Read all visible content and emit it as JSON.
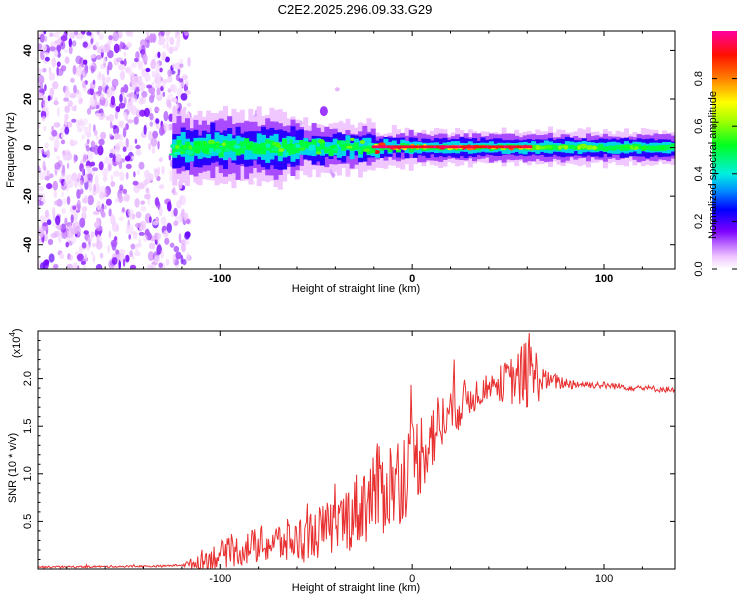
{
  "chart_data": [
    {
      "type": "heatmap",
      "title": "C2E2.2025.296.09.33.G29",
      "xlabel": "Height of straight line (km)",
      "ylabel": "Frequency (Hz)",
      "xlim": [
        -195,
        137
      ],
      "ylim": [
        -50,
        48
      ],
      "x_ticks": [
        -100,
        0,
        100
      ],
      "x_tick_labels": [
        "-100",
        "0",
        "100"
      ],
      "y_ticks": [
        -40,
        -20,
        0,
        20,
        40
      ],
      "y_tick_labels": [
        "-40",
        "-20",
        "0",
        "20",
        "40"
      ],
      "colorbar": {
        "label": "Normalized spectral amplitude",
        "range": [
          0,
          1
        ],
        "ticks": [
          0.0,
          0.2,
          0.4,
          0.6,
          0.8
        ],
        "tick_labels": [
          "0.0",
          "0.2",
          "0.4",
          "0.6",
          "0.8"
        ],
        "colors": [
          "#ffffff",
          "#c8a8ff",
          "#7a00ff",
          "#0000ff",
          "#00d8ff",
          "#00ff00",
          "#ffff00",
          "#ff8000",
          "#ff0000",
          "#ff00a0"
        ]
      },
      "features": {
        "noise_region_x": [
          -195,
          -120
        ],
        "signal_start_x": -125,
        "signal_center_freq": 0,
        "peak_band_x": [
          -20,
          62
        ],
        "outlier_blob": {
          "x": -46,
          "y": 15
        }
      }
    },
    {
      "type": "line",
      "xlabel": "Height of straight line (km)",
      "ylabel": "SNR (10 * v/v)",
      "y_multiplier_label": "(x10",
      "y_multiplier_exp": "4",
      "y_multiplier_close": ")",
      "xlim": [
        -195,
        137
      ],
      "ylim": [
        0,
        2.5
      ],
      "x_ticks": [
        -100,
        0,
        100
      ],
      "x_tick_labels": [
        "-100",
        "0",
        "100"
      ],
      "y_ticks": [
        0.5,
        1.0,
        1.5,
        2.0
      ],
      "y_tick_labels": [
        "0.5",
        "1.0",
        "1.5",
        "2.0"
      ],
      "color": "#e83030",
      "envelope": {
        "x": [
          -195,
          -130,
          -115,
          -100,
          -80,
          -60,
          -40,
          -30,
          -20,
          -10,
          0,
          10,
          20,
          30,
          40,
          50,
          55,
          60,
          65,
          70,
          80,
          100,
          120,
          137
        ],
        "y": [
          0.02,
          0.03,
          0.05,
          0.15,
          0.25,
          0.3,
          0.45,
          0.6,
          0.8,
          0.9,
          1.1,
          1.4,
          1.65,
          1.8,
          1.92,
          1.97,
          2.0,
          2.05,
          2.02,
          1.98,
          1.95,
          1.93,
          1.9,
          1.88
        ]
      },
      "noise_amplitude": {
        "x": [
          -195,
          -120,
          -110,
          -60,
          -40,
          -20,
          0,
          20,
          40,
          55,
          60,
          65,
          70,
          90,
          137
        ],
        "y": [
          0.01,
          0.01,
          0.12,
          0.25,
          0.3,
          0.5,
          0.5,
          0.3,
          0.12,
          0.3,
          0.4,
          0.3,
          0.1,
          0.04,
          0.03
        ]
      }
    }
  ]
}
